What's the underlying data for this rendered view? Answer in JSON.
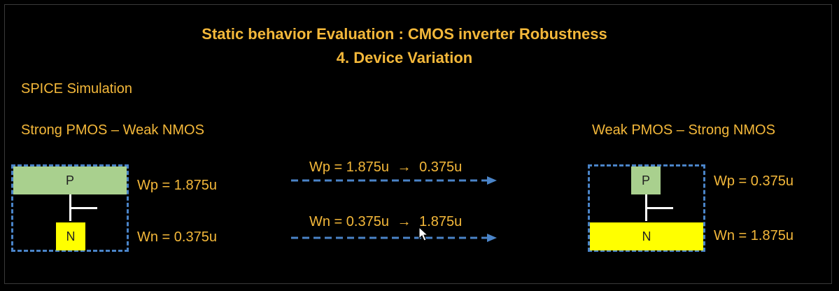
{
  "title": {
    "line1": "Static behavior Evaluation : CMOS inverter Robustness",
    "line2": "4. Device Variation"
  },
  "section_label": "SPICE Simulation",
  "left": {
    "heading": "Strong PMOS – Weak NMOS",
    "p_label": "P",
    "n_label": "N",
    "wp": "Wp = 1.875u",
    "wn": "Wn = 0.375u"
  },
  "middle": {
    "wp_from": "Wp = 1.875u",
    "wp_to": "0.375u",
    "wn_from": "Wn = 0.375u",
    "wn_to": "1.875u"
  },
  "right": {
    "heading": "Weak PMOS – Strong NMOS",
    "p_label": "P",
    "n_label": "N",
    "wp": "Wp = 0.375u",
    "wn": "Wn = 1.875u"
  },
  "colors": {
    "text": "#f4b83a",
    "pmos": "#a9d08e",
    "nmos": "#ffff00",
    "dash": "#4a84c8",
    "background": "#000000"
  }
}
